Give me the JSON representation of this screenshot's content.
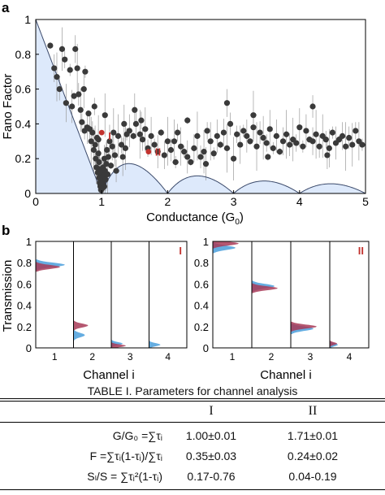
{
  "colors": {
    "fill": "#dde9fb",
    "bound": "#3b4a6b",
    "dot": "#3a3a3a",
    "err": "#9a9a9a",
    "blue": "#4a9fdc",
    "red": "#a83a57",
    "mark": "#c2332f"
  },
  "chart_data": [
    {
      "type": "scatter",
      "panel": "a",
      "xlabel": "Conductance (G",
      "xlabel_sub": "0",
      "xlabel_end": ")",
      "ylabel": "Fano Factor",
      "xlim": [
        0,
        5
      ],
      "ylim": [
        0,
        1
      ],
      "xticks": [
        "0",
        "1",
        "2",
        "3",
        "4",
        "5"
      ],
      "yticks": [
        "0",
        "0.2",
        "0.4",
        "0.6",
        "0.8",
        "1"
      ],
      "markers": [
        {
          "label": "I",
          "x": 1.0,
          "y": 0.35
        },
        {
          "label": "II",
          "x": 1.71,
          "y": 0.24
        }
      ],
      "points": [
        [
          0.22,
          0.85
        ],
        [
          0.28,
          0.72
        ],
        [
          0.32,
          0.67
        ],
        [
          0.36,
          0.6
        ],
        [
          0.4,
          0.83
        ],
        [
          0.44,
          0.77
        ],
        [
          0.46,
          0.52
        ],
        [
          0.52,
          0.71
        ],
        [
          0.55,
          0.5
        ],
        [
          0.58,
          0.56
        ],
        [
          0.6,
          0.83
        ],
        [
          0.63,
          0.72
        ],
        [
          0.65,
          0.57
        ],
        [
          0.68,
          0.48
        ],
        [
          0.7,
          0.41
        ],
        [
          0.73,
          0.6
        ],
        [
          0.75,
          0.7
        ],
        [
          0.78,
          0.38
        ],
        [
          0.8,
          0.46
        ],
        [
          0.82,
          0.37
        ],
        [
          0.84,
          0.3
        ],
        [
          0.86,
          0.35
        ],
        [
          0.88,
          0.25
        ],
        [
          0.89,
          0.5
        ],
        [
          0.9,
          0.28
        ],
        [
          0.91,
          0.2
        ],
        [
          0.92,
          0.15
        ],
        [
          0.93,
          0.32
        ],
        [
          0.94,
          0.12
        ],
        [
          0.95,
          0.23
        ],
        [
          0.96,
          0.09
        ],
        [
          0.96,
          0.18
        ],
        [
          0.97,
          0.06
        ],
        [
          0.97,
          0.14
        ],
        [
          0.98,
          0.04
        ],
        [
          0.98,
          0.11
        ],
        [
          0.99,
          0.08
        ],
        [
          0.99,
          0.02
        ],
        [
          1.0,
          0.05
        ],
        [
          1.0,
          0.12
        ],
        [
          1.01,
          0.03
        ],
        [
          1.01,
          0.09
        ],
        [
          1.02,
          0.06
        ],
        [
          1.02,
          0.15
        ],
        [
          1.03,
          0.1
        ],
        [
          1.04,
          0.04
        ],
        [
          1.04,
          0.2
        ],
        [
          1.05,
          0.13
        ],
        [
          1.06,
          0.08
        ],
        [
          1.07,
          0.17
        ],
        [
          1.08,
          0.25
        ],
        [
          1.09,
          0.11
        ],
        [
          1.1,
          0.21
        ],
        [
          1.12,
          0.3
        ],
        [
          1.14,
          0.16
        ],
        [
          1.16,
          0.27
        ],
        [
          1.18,
          0.35
        ],
        [
          1.2,
          0.22
        ],
        [
          1.25,
          0.33
        ],
        [
          1.3,
          0.28
        ],
        [
          1.34,
          0.4
        ],
        [
          1.38,
          0.34
        ],
        [
          1.42,
          0.36
        ],
        [
          1.48,
          0.33
        ],
        [
          1.52,
          0.4
        ],
        [
          1.58,
          0.34
        ],
        [
          1.62,
          0.31
        ],
        [
          1.66,
          0.37
        ],
        [
          1.7,
          0.26
        ],
        [
          1.75,
          0.33
        ],
        [
          1.8,
          0.28
        ],
        [
          1.85,
          0.24
        ],
        [
          1.9,
          0.35
        ],
        [
          1.95,
          0.22
        ],
        [
          2.0,
          0.3
        ],
        [
          2.05,
          0.25
        ],
        [
          2.1,
          0.3
        ],
        [
          2.15,
          0.35
        ],
        [
          2.2,
          0.27
        ],
        [
          2.25,
          0.24
        ],
        [
          2.3,
          0.21
        ],
        [
          2.35,
          0.18
        ],
        [
          2.4,
          0.26
        ],
        [
          2.45,
          0.33
        ],
        [
          2.5,
          0.21
        ],
        [
          2.55,
          0.24
        ],
        [
          2.6,
          0.36
        ],
        [
          2.65,
          0.3
        ],
        [
          2.7,
          0.23
        ],
        [
          2.75,
          0.33
        ],
        [
          2.8,
          0.28
        ],
        [
          2.85,
          0.35
        ],
        [
          2.9,
          0.26
        ],
        [
          2.95,
          0.4
        ],
        [
          3.0,
          0.2
        ],
        [
          3.05,
          0.34
        ],
        [
          3.1,
          0.28
        ],
        [
          3.15,
          0.36
        ],
        [
          3.2,
          0.33
        ],
        [
          3.25,
          0.3
        ],
        [
          3.3,
          0.38
        ],
        [
          3.35,
          0.27
        ],
        [
          3.4,
          0.35
        ],
        [
          3.45,
          0.32
        ],
        [
          3.5,
          0.29
        ],
        [
          3.55,
          0.37
        ],
        [
          3.6,
          0.26
        ],
        [
          3.65,
          0.33
        ],
        [
          3.7,
          0.24
        ],
        [
          3.75,
          0.3
        ],
        [
          3.8,
          0.34
        ],
        [
          3.85,
          0.28
        ],
        [
          3.9,
          0.31
        ],
        [
          3.95,
          0.29
        ],
        [
          4.0,
          0.38
        ],
        [
          4.05,
          0.27
        ],
        [
          4.1,
          0.36
        ],
        [
          4.15,
          0.31
        ],
        [
          4.2,
          0.3
        ],
        [
          4.25,
          0.34
        ],
        [
          4.3,
          0.27
        ],
        [
          4.35,
          0.33
        ],
        [
          4.4,
          0.31
        ],
        [
          4.45,
          0.26
        ],
        [
          4.5,
          0.35
        ],
        [
          4.55,
          0.29
        ],
        [
          4.6,
          0.31
        ],
        [
          4.65,
          0.33
        ],
        [
          4.7,
          0.27
        ],
        [
          4.75,
          0.32
        ],
        [
          4.8,
          0.28
        ],
        [
          4.85,
          0.36
        ],
        [
          4.9,
          0.3
        ],
        [
          4.95,
          0.28
        ],
        [
          1.5,
          0.48
        ],
        [
          2.3,
          0.42
        ],
        [
          2.9,
          0.52
        ],
        [
          3.3,
          0.45
        ],
        [
          4.2,
          0.5
        ],
        [
          1.05,
          0.45
        ],
        [
          0.74,
          0.36
        ],
        [
          1.32,
          0.21
        ],
        [
          2.12,
          0.18
        ],
        [
          2.58,
          0.17
        ],
        [
          3.52,
          0.21
        ],
        [
          4.42,
          0.22
        ],
        [
          0.95,
          0.31
        ],
        [
          1.22,
          0.13
        ],
        [
          1.36,
          0.26
        ],
        [
          1.6,
          0.42
        ]
      ]
    },
    {
      "type": "histogram",
      "panel": "b",
      "ylabel": "Transmission",
      "xlabel": "Channel i",
      "groups": [
        {
          "label": "I",
          "channels": [
            "1",
            "2",
            "3",
            "4"
          ],
          "blue_peaks": [
            0.78,
            0.12,
            0.04,
            0.03
          ],
          "red_peaks": [
            0.76,
            0.21,
            0.02,
            0.0
          ],
          "yticks": [
            "0",
            "0.2",
            "0.4",
            "0.6",
            "0.8",
            "1"
          ]
        },
        {
          "label": "II",
          "channels": [
            "1",
            "2",
            "3",
            "4"
          ],
          "blue_peaks": [
            0.94,
            0.58,
            0.18,
            0.03
          ],
          "red_peaks": [
            0.98,
            0.56,
            0.2,
            0.04
          ],
          "yticks": [
            "0",
            "0.2",
            "0.4",
            "0.6",
            "0.8",
            "1"
          ]
        }
      ]
    }
  ],
  "panel_labels": {
    "a": "a",
    "b": "b"
  },
  "table": {
    "caption": "TABLE I. Parameters for channel analysis",
    "col_I": "I",
    "col_II": "II",
    "rows": [
      {
        "label": "G/G₀ =∑τᵢ",
        "I": "1.00±0.01",
        "II": "1.71±0.01"
      },
      {
        "label": "F =∑τᵢ(1-τᵢ)/∑τᵢ",
        "I": "0.35±0.03",
        "II": "0.24±0.02"
      },
      {
        "label": "Sₗ/S = ∑τᵢ²(1-τᵢ)",
        "I": "0.17-0.76",
        "II": "0.04-0.19"
      }
    ]
  }
}
